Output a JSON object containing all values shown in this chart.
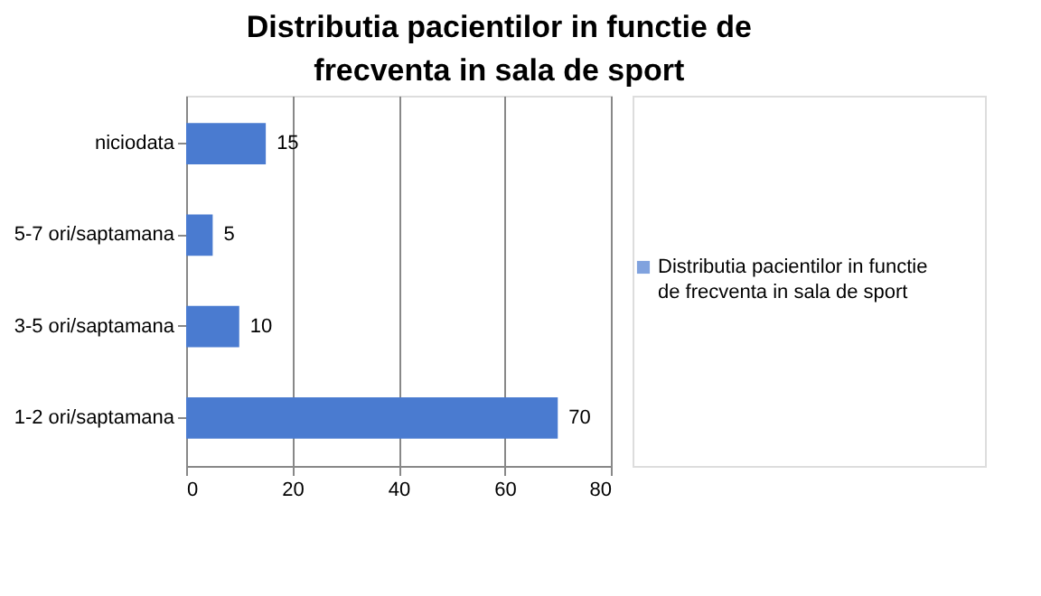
{
  "chart_data": {
    "type": "bar",
    "orientation": "horizontal",
    "title": "Distributia pacientilor in functie de frecventa in sala de sport",
    "categories": [
      "niciodata",
      "5-7 ori/saptamana",
      "3-5 ori/saptamana",
      "1-2 ori/saptamana"
    ],
    "series": [
      {
        "name": "Distributia pacientilor in functie de frecventa in sala de sport",
        "color": "#4a7bd0",
        "values": [
          15,
          5,
          10,
          70
        ]
      }
    ],
    "xlim": [
      0,
      80
    ],
    "xticks": [
      0,
      20,
      40,
      60,
      80
    ],
    "grid": "x",
    "legend": "right",
    "data_labels": true
  }
}
